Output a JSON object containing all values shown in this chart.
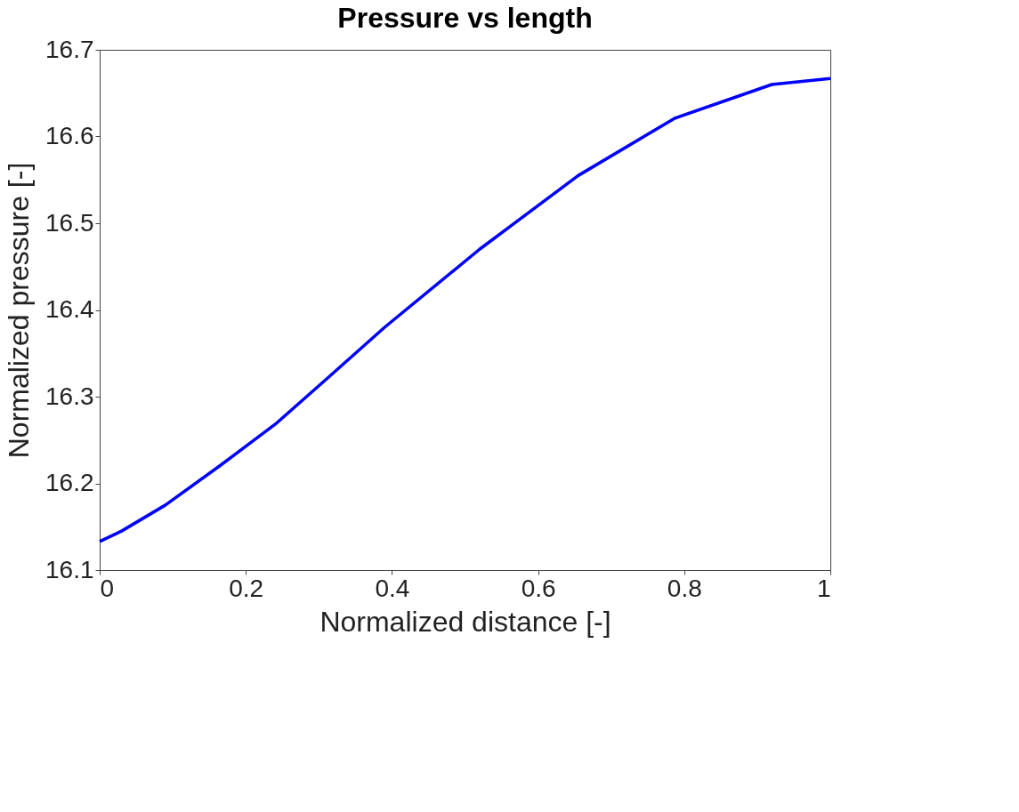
{
  "chart_data": {
    "type": "line",
    "title": "Pressure vs length",
    "xlabel": "Normalized distance [-]",
    "ylabel": "Normalized pressure [-]",
    "x": [
      0,
      0.03,
      0.09,
      0.164,
      0.24,
      0.31,
      0.39,
      0.52,
      0.655,
      0.787,
      0.92,
      1
    ],
    "series": [
      {
        "color": "#0000ff",
        "values": [
          16.133,
          16.145,
          16.175,
          16.22,
          16.268,
          16.32,
          16.38,
          16.47,
          16.555,
          16.621,
          16.66,
          16.667
        ]
      }
    ],
    "xlim": [
      0,
      1
    ],
    "xticks": [
      0,
      0.2,
      0.4,
      0.6,
      0.8,
      1
    ],
    "ylim": [
      16.1,
      16.7
    ],
    "yticks": [
      16.1,
      16.2,
      16.3,
      16.4,
      16.5,
      16.6,
      16.7
    ],
    "grid": false,
    "legend": false,
    "marker": "none",
    "line_style": "solid"
  }
}
